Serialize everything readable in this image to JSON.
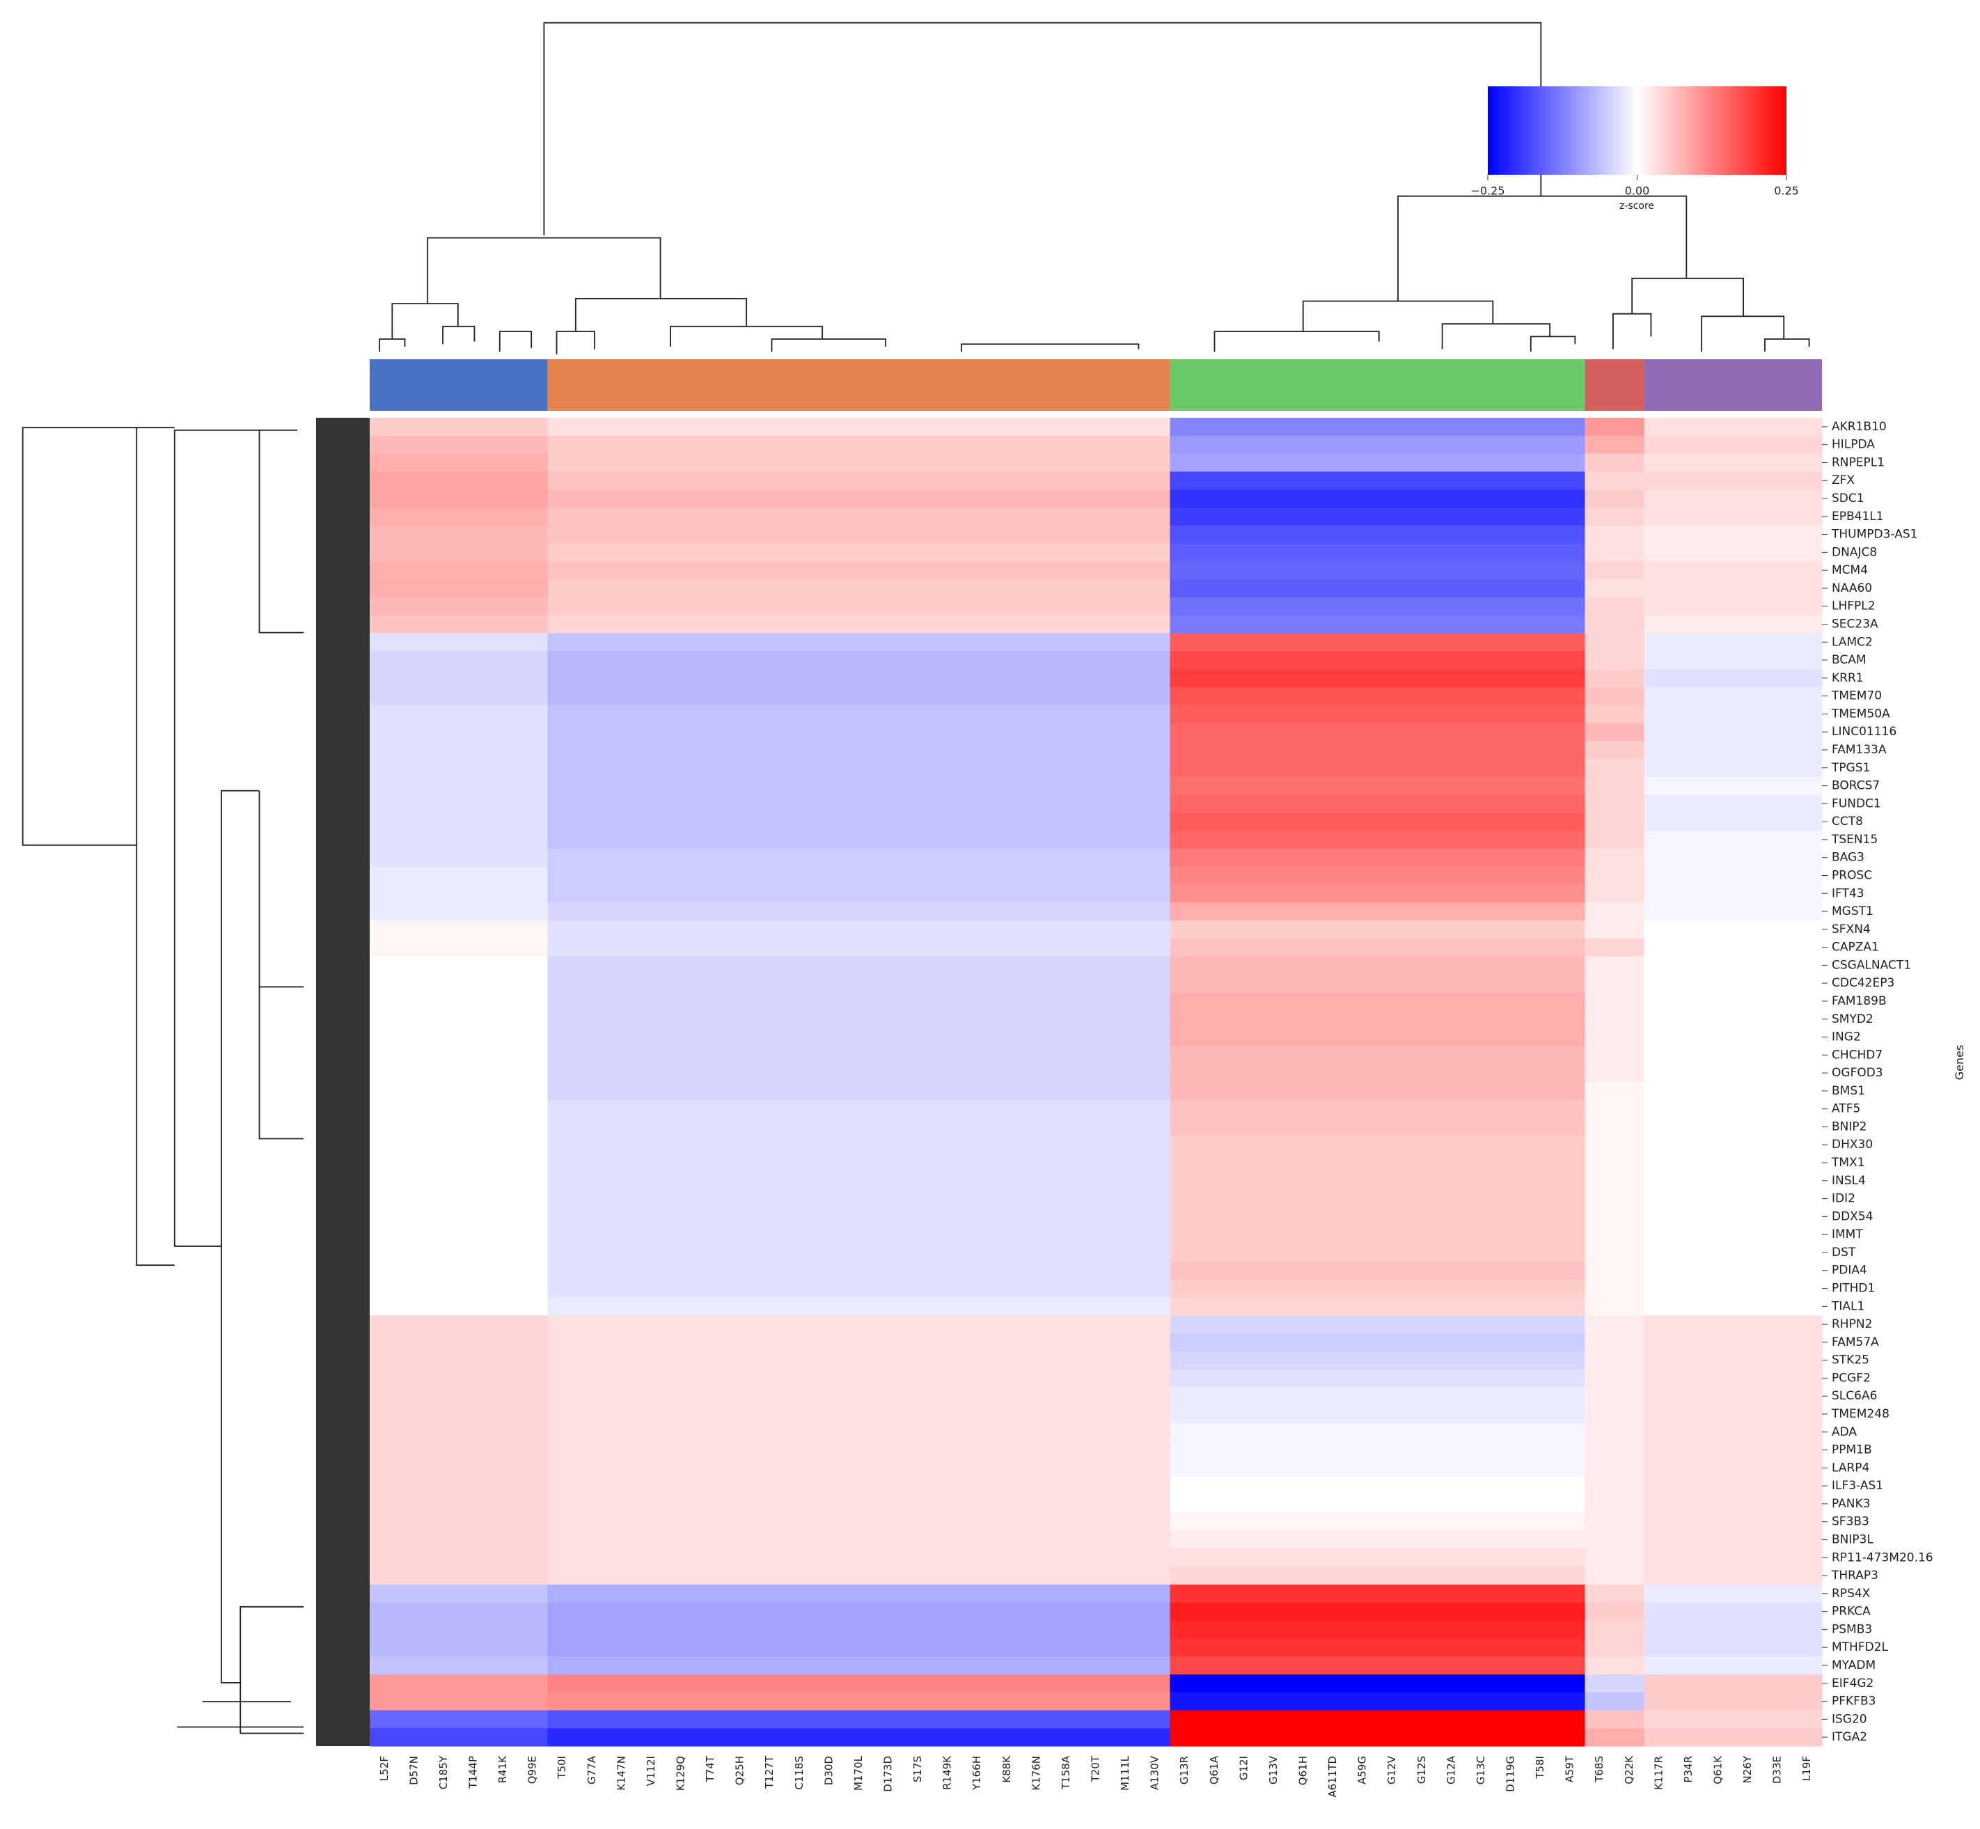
{
  "chart_data": {
    "type": "heatmap",
    "ylabel": "Genes",
    "colorbar_label": "z-score",
    "clim": [
      -0.25,
      0.25
    ],
    "cbar_ticks": [
      {
        "value": -0.25,
        "label": "−0.25"
      },
      {
        "value": 0,
        "label": "0.00"
      },
      0.25
    ],
    "colormap": [
      "#0000ff",
      "#ffffff",
      "#ff0000"
    ],
    "column_groups": [
      {
        "color": "#4a72c4",
        "columns": [
          "L52F",
          "D57N",
          "C185Y",
          "T144P",
          "R41K",
          "Q99E"
        ]
      },
      {
        "color": "#e5834f",
        "columns": [
          "T50I",
          "G77A",
          "K147N",
          "V112I",
          "K129Q",
          "T74T",
          "Q25H",
          "T127T",
          "C118S",
          "D30D",
          "M170L",
          "D173D",
          "S17S",
          "R149K",
          "Y166H",
          "K88K",
          "K176N",
          "T158A",
          "T20T",
          "M111L",
          "A130V"
        ]
      },
      {
        "color": "#6cc96a",
        "columns": [
          "G13R",
          "Q61A",
          "G12I",
          "G13V",
          "Q61H",
          "A611TD",
          "A59G",
          "G12V",
          "G12S",
          "G12A",
          "G13C",
          "D119G",
          "T58I",
          "A59T"
        ]
      },
      {
        "color": "#d45f5f",
        "columns": [
          "T68S",
          "Q22K"
        ]
      },
      {
        "color": "#8e6bb2",
        "columns": [
          "K117R",
          "P34R",
          "Q61K",
          "N26Y",
          "D33E",
          "L19F"
        ]
      }
    ],
    "rows": [
      "AKR1B10",
      "HILPDA",
      "RNPEPL1",
      "ZFX",
      "SDC1",
      "EPB41L1",
      "THUMPD3-AS1",
      "DNAJC8",
      "MCM4",
      "NAA60",
      "LHFPL2",
      "SEC23A",
      "LAMC2",
      "BCAM",
      "KRR1",
      "TMEM70",
      "TMEM50A",
      "LINC01116",
      "FAM133A",
      "TPGS1",
      "BORCS7",
      "FUNDC1",
      "CCT8",
      "TSEN15",
      "BAG3",
      "PROSC",
      "IFT43",
      "MGST1",
      "SFXN4",
      "CAPZA1",
      "CSGALNACT1",
      "CDC42EP3",
      "FAM189B",
      "SMYD2",
      "ING2",
      "CHCHD7",
      "OGFOD3",
      "BMS1",
      "ATF5",
      "BNIP2",
      "DHX30",
      "TMX1",
      "INSL4",
      "IDI2",
      "DDX54",
      "IMMT",
      "DST",
      "PDIA4",
      "PITHD1",
      "TIAL1",
      "RHPN2",
      "FAM57A",
      "STK25",
      "PCGF2",
      "SLC6A6",
      "TMEM248",
      "ADA",
      "PPM1B",
      "LARP4",
      "ILF3-AS1",
      "PANK3",
      "SF3B3",
      "BNIP3L",
      "RP11-473M20.16",
      "THRAP3",
      "RPS4X",
      "PRKCA",
      "PSMB3",
      "MTHFD2L",
      "MYADM",
      "EIF4G2",
      "PFKFB3",
      "ISG20",
      "ITGA2"
    ],
    "values": [
      [
        0.05,
        0.03,
        -0.12,
        0.1,
        0.03
      ],
      [
        0.07,
        0.05,
        -0.1,
        0.08,
        0.04
      ],
      [
        0.08,
        0.05,
        -0.09,
        0.05,
        0.03
      ],
      [
        0.09,
        0.06,
        -0.18,
        0.04,
        0.04
      ],
      [
        0.09,
        0.07,
        -0.2,
        0.05,
        0.03
      ],
      [
        0.08,
        0.06,
        -0.19,
        0.04,
        0.03
      ],
      [
        0.07,
        0.06,
        -0.17,
        0.03,
        0.02
      ],
      [
        0.07,
        0.05,
        -0.16,
        0.03,
        0.02
      ],
      [
        0.08,
        0.06,
        -0.15,
        0.04,
        0.03
      ],
      [
        0.08,
        0.05,
        -0.16,
        0.03,
        0.03
      ],
      [
        0.07,
        0.05,
        -0.14,
        0.04,
        0.03
      ],
      [
        0.06,
        0.04,
        -0.13,
        0.04,
        0.02
      ],
      [
        -0.03,
        -0.06,
        0.16,
        0.04,
        -0.02
      ],
      [
        -0.04,
        -0.07,
        0.18,
        0.04,
        -0.02
      ],
      [
        -0.04,
        -0.07,
        0.19,
        0.05,
        -0.03
      ],
      [
        -0.04,
        -0.07,
        0.17,
        0.06,
        -0.02
      ],
      [
        -0.03,
        -0.06,
        0.16,
        0.05,
        -0.02
      ],
      [
        -0.03,
        -0.06,
        0.15,
        0.07,
        -0.02
      ],
      [
        -0.03,
        -0.06,
        0.15,
        0.05,
        -0.02
      ],
      [
        -0.03,
        -0.06,
        0.15,
        0.04,
        -0.02
      ],
      [
        -0.03,
        -0.06,
        0.14,
        0.04,
        -0.01
      ],
      [
        -0.03,
        -0.06,
        0.15,
        0.04,
        -0.02
      ],
      [
        -0.03,
        -0.06,
        0.16,
        0.04,
        -0.02
      ],
      [
        -0.03,
        -0.06,
        0.15,
        0.04,
        -0.01
      ],
      [
        -0.03,
        -0.05,
        0.13,
        0.03,
        -0.01
      ],
      [
        -0.02,
        -0.05,
        0.12,
        0.03,
        -0.01
      ],
      [
        -0.02,
        -0.05,
        0.11,
        0.03,
        -0.01
      ],
      [
        -0.02,
        -0.04,
        0.08,
        0.02,
        -0.01
      ],
      [
        0.01,
        -0.03,
        0.05,
        0.02,
        0.0
      ],
      [
        0.01,
        -0.03,
        0.06,
        0.04,
        0.0
      ],
      [
        0.0,
        -0.04,
        0.07,
        0.02,
        0.0
      ],
      [
        0.0,
        -0.04,
        0.07,
        0.02,
        0.0
      ],
      [
        0.0,
        -0.04,
        0.08,
        0.02,
        0.0
      ],
      [
        0.0,
        -0.04,
        0.08,
        0.02,
        0.0
      ],
      [
        0.0,
        -0.04,
        0.08,
        0.02,
        0.0
      ],
      [
        0.0,
        -0.04,
        0.07,
        0.02,
        0.0
      ],
      [
        0.0,
        -0.04,
        0.07,
        0.02,
        0.0
      ],
      [
        0.0,
        -0.04,
        0.07,
        0.01,
        0.0
      ],
      [
        0.0,
        -0.03,
        0.06,
        0.01,
        0.0
      ],
      [
        0.0,
        -0.03,
        0.06,
        0.01,
        0.0
      ],
      [
        0.0,
        -0.03,
        0.05,
        0.01,
        0.0
      ],
      [
        0.0,
        -0.03,
        0.05,
        0.01,
        0.0
      ],
      [
        0.0,
        -0.03,
        0.05,
        0.01,
        0.0
      ],
      [
        0.0,
        -0.03,
        0.05,
        0.01,
        0.0
      ],
      [
        0.0,
        -0.03,
        0.05,
        0.01,
        0.0
      ],
      [
        0.0,
        -0.03,
        0.05,
        0.01,
        0.0
      ],
      [
        0.0,
        -0.03,
        0.05,
        0.01,
        0.0
      ],
      [
        0.0,
        -0.03,
        0.06,
        0.01,
        0.0
      ],
      [
        0.0,
        -0.03,
        0.05,
        0.01,
        0.0
      ],
      [
        0.0,
        -0.02,
        0.04,
        0.01,
        0.0
      ],
      [
        0.04,
        0.03,
        -0.04,
        0.02,
        0.03
      ],
      [
        0.04,
        0.03,
        -0.05,
        0.02,
        0.03
      ],
      [
        0.04,
        0.03,
        -0.04,
        0.02,
        0.03
      ],
      [
        0.04,
        0.03,
        -0.03,
        0.02,
        0.03
      ],
      [
        0.04,
        0.03,
        -0.02,
        0.02,
        0.03
      ],
      [
        0.04,
        0.03,
        -0.02,
        0.02,
        0.03
      ],
      [
        0.04,
        0.03,
        -0.01,
        0.02,
        0.03
      ],
      [
        0.04,
        0.03,
        -0.01,
        0.02,
        0.03
      ],
      [
        0.04,
        0.03,
        -0.01,
        0.02,
        0.03
      ],
      [
        0.04,
        0.03,
        0.0,
        0.02,
        0.03
      ],
      [
        0.04,
        0.03,
        0.0,
        0.02,
        0.03
      ],
      [
        0.04,
        0.03,
        0.01,
        0.02,
        0.03
      ],
      [
        0.04,
        0.03,
        0.02,
        0.02,
        0.03
      ],
      [
        0.04,
        0.03,
        0.03,
        0.02,
        0.03
      ],
      [
        0.04,
        0.03,
        0.04,
        0.02,
        0.03
      ],
      [
        -0.06,
        -0.08,
        0.2,
        0.04,
        -0.02
      ],
      [
        -0.07,
        -0.09,
        0.22,
        0.05,
        -0.03
      ],
      [
        -0.07,
        -0.09,
        0.21,
        0.04,
        -0.03
      ],
      [
        -0.07,
        -0.09,
        0.2,
        0.04,
        -0.03
      ],
      [
        -0.06,
        -0.08,
        0.18,
        0.03,
        -0.02
      ],
      [
        0.1,
        0.12,
        -0.25,
        -0.04,
        0.05
      ],
      [
        0.1,
        0.11,
        -0.23,
        -0.06,
        0.05
      ],
      [
        -0.15,
        -0.17,
        0.25,
        0.06,
        0.04
      ],
      [
        -0.18,
        -0.21,
        0.25,
        0.08,
        0.05
      ]
    ]
  }
}
